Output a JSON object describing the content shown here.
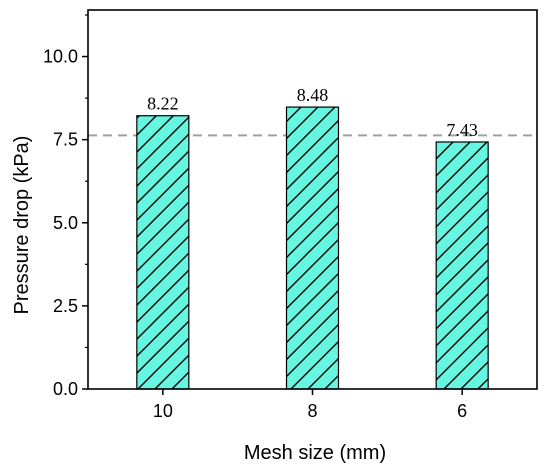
{
  "chart_data": {
    "type": "bar",
    "categories": [
      "10",
      "8",
      "6"
    ],
    "values": [
      8.22,
      8.48,
      7.43
    ],
    "data_labels": [
      "8.22",
      "8.48",
      "7.43"
    ],
    "title": "",
    "xlabel": "Mesh size (mm)",
    "ylabel": "Pressure drop (kPa)",
    "ylim": [
      0,
      11.4
    ],
    "yticks": [
      0,
      2.5,
      5,
      7.5,
      10
    ],
    "ytick_labels": [
      "0.0",
      "2.5",
      "5.0",
      "7.5",
      "10.0"
    ],
    "reference_line": 7.63,
    "grid": false,
    "legend": "none",
    "bar_fill": "#66f5e0",
    "bar_hatch": "diagonal",
    "bar_edge": "#000000",
    "reference_line_color": "#a0a0a0"
  }
}
